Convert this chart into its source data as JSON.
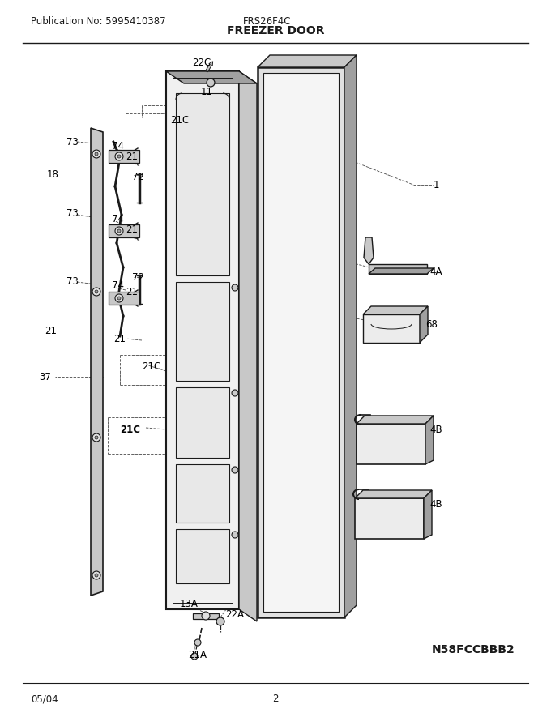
{
  "publication": "Publication No: 5995410387",
  "model": "FRS26F4C",
  "title": "FREEZER DOOR",
  "footer_date": "05/04",
  "footer_page": "2",
  "diagram_code": "N58FCCBBB2",
  "bg_color": "#ffffff",
  "line_color": "#1a1a1a",
  "gray_light": "#e0e0e0",
  "gray_mid": "#c8c8c8",
  "gray_dark": "#a0a0a0"
}
